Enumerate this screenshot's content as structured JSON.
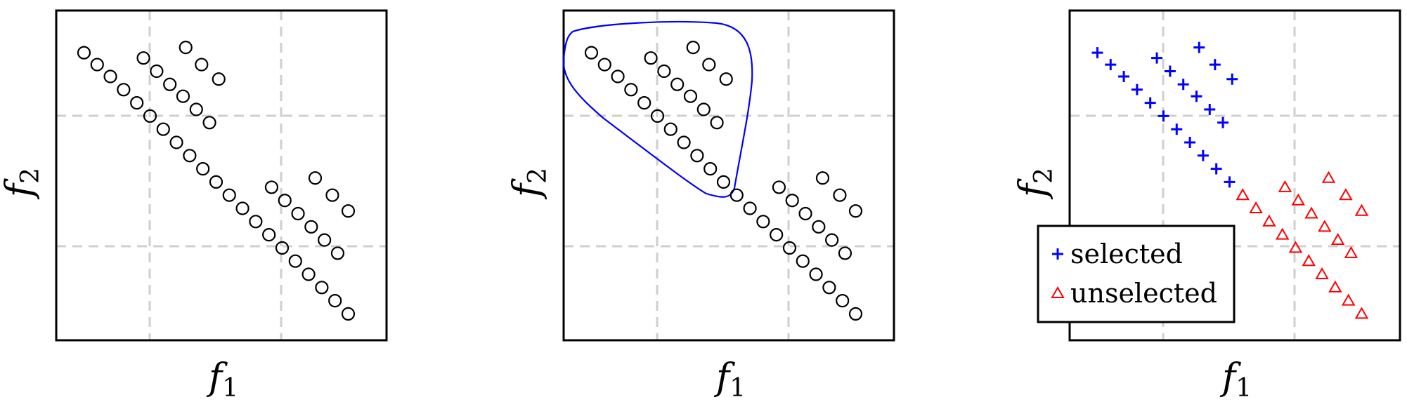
{
  "chart_data": [
    {
      "type": "scatter",
      "xlabel": "f",
      "xlabel_sub": "1",
      "ylabel": "f",
      "ylabel_sub": "2",
      "grid": "dashed",
      "xlim": [
        0,
        25
      ],
      "ylim": [
        0,
        25
      ],
      "series": [
        {
          "marker": "circle",
          "color": "#000000",
          "points": [
            [
              2.1,
              21.8
            ],
            [
              3.1,
              20.9
            ],
            [
              4.1,
              20
            ],
            [
              5.1,
              19
            ],
            [
              6.1,
              18
            ],
            [
              7.1,
              17
            ],
            [
              8.1,
              16
            ],
            [
              9.1,
              15
            ],
            [
              10.1,
              14
            ],
            [
              11.1,
              13
            ],
            [
              12.1,
              12
            ],
            [
              13.1,
              11
            ],
            [
              14.1,
              10
            ],
            [
              15.1,
              9
            ],
            [
              16.1,
              8
            ],
            [
              17.1,
              7
            ],
            [
              18.1,
              6
            ],
            [
              19.1,
              5
            ],
            [
              20.1,
              4
            ],
            [
              21.1,
              3
            ],
            [
              22.1,
              2
            ],
            [
              6.6,
              21.4
            ],
            [
              7.6,
              20.4
            ],
            [
              8.6,
              19.4
            ],
            [
              9.6,
              18.5
            ],
            [
              10.6,
              17.5
            ],
            [
              11.6,
              16.5
            ],
            [
              9.8,
              22.2
            ],
            [
              11,
              20.9
            ],
            [
              12.3,
              19.8
            ],
            [
              16.3,
              11.6
            ],
            [
              17.3,
              10.6
            ],
            [
              18.3,
              9.6
            ],
            [
              19.3,
              8.6
            ],
            [
              20.3,
              7.6
            ],
            [
              21.3,
              6.6
            ],
            [
              19.6,
              12.3
            ],
            [
              20.9,
              11
            ],
            [
              22.1,
              9.8
            ]
          ]
        }
      ]
    },
    {
      "type": "scatter",
      "xlabel": "f",
      "xlabel_sub": "1",
      "ylabel": "f",
      "ylabel_sub": "2",
      "grid": "dashed",
      "xlim": [
        0,
        25
      ],
      "ylim": [
        0,
        25
      ],
      "annotation": "selection boundary",
      "annotation_color": "#0000ff",
      "series": [
        {
          "marker": "circle",
          "color": "#000000",
          "points": [
            [
              2.1,
              21.8
            ],
            [
              3.1,
              20.9
            ],
            [
              4.1,
              20
            ],
            [
              5.1,
              19
            ],
            [
              6.1,
              18
            ],
            [
              7.1,
              17
            ],
            [
              8.1,
              16
            ],
            [
              9.1,
              15
            ],
            [
              10.1,
              14
            ],
            [
              11.1,
              13
            ],
            [
              12.1,
              12
            ],
            [
              13.1,
              11
            ],
            [
              14.1,
              10
            ],
            [
              15.1,
              9
            ],
            [
              16.1,
              8
            ],
            [
              17.1,
              7
            ],
            [
              18.1,
              6
            ],
            [
              19.1,
              5
            ],
            [
              20.1,
              4
            ],
            [
              21.1,
              3
            ],
            [
              22.1,
              2
            ],
            [
              6.6,
              21.4
            ],
            [
              7.6,
              20.4
            ],
            [
              8.6,
              19.4
            ],
            [
              9.6,
              18.5
            ],
            [
              10.6,
              17.5
            ],
            [
              11.6,
              16.5
            ],
            [
              9.8,
              22.2
            ],
            [
              11,
              20.9
            ],
            [
              12.3,
              19.8
            ],
            [
              16.3,
              11.6
            ],
            [
              17.3,
              10.6
            ],
            [
              18.3,
              9.6
            ],
            [
              19.3,
              8.6
            ],
            [
              20.3,
              7.6
            ],
            [
              21.3,
              6.6
            ],
            [
              19.6,
              12.3
            ],
            [
              20.9,
              11
            ],
            [
              22.1,
              9.8
            ]
          ]
        }
      ]
    },
    {
      "type": "scatter",
      "xlabel": "f",
      "xlabel_sub": "1",
      "ylabel": "f",
      "ylabel_sub": "2",
      "grid": "dashed",
      "xlim": [
        0,
        25
      ],
      "ylim": [
        0,
        25
      ],
      "legend_position": "bottom-left",
      "series": [
        {
          "name": "selected",
          "marker": "plus",
          "color": "#0000ff",
          "points": [
            [
              2.1,
              21.8
            ],
            [
              3.1,
              20.9
            ],
            [
              4.1,
              20
            ],
            [
              5.1,
              19
            ],
            [
              6.1,
              18
            ],
            [
              7.1,
              17
            ],
            [
              8.1,
              16
            ],
            [
              9.1,
              15
            ],
            [
              10.1,
              14
            ],
            [
              11.1,
              13
            ],
            [
              12.1,
              12
            ],
            [
              6.6,
              21.4
            ],
            [
              7.6,
              20.4
            ],
            [
              8.6,
              19.4
            ],
            [
              9.6,
              18.5
            ],
            [
              10.6,
              17.5
            ],
            [
              11.6,
              16.5
            ],
            [
              9.8,
              22.2
            ],
            [
              11,
              20.9
            ],
            [
              12.3,
              19.8
            ]
          ]
        },
        {
          "name": "unselected",
          "marker": "triangle",
          "color": "#ff0000",
          "points": [
            [
              13.1,
              11
            ],
            [
              14.1,
              10
            ],
            [
              15.1,
              9
            ],
            [
              16.1,
              8
            ],
            [
              17.1,
              7
            ],
            [
              18.1,
              6
            ],
            [
              19.1,
              5
            ],
            [
              20.1,
              4
            ],
            [
              21.1,
              3
            ],
            [
              22.1,
              2
            ],
            [
              16.3,
              11.6
            ],
            [
              17.3,
              10.6
            ],
            [
              18.3,
              9.6
            ],
            [
              19.3,
              8.6
            ],
            [
              20.3,
              7.6
            ],
            [
              21.3,
              6.6
            ],
            [
              19.6,
              12.3
            ],
            [
              20.9,
              11
            ],
            [
              22.1,
              9.8
            ]
          ]
        }
      ]
    }
  ]
}
